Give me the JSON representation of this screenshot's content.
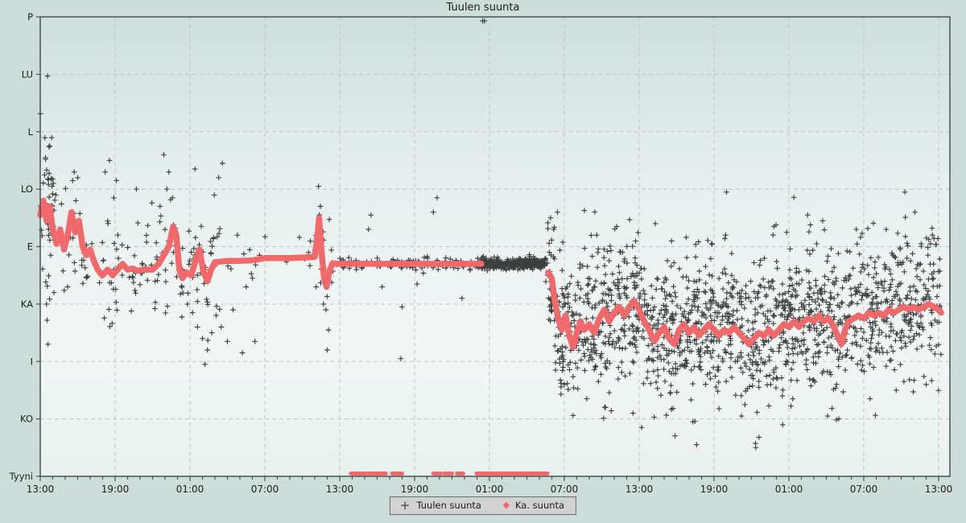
{
  "title": "Tuulen suunta",
  "legend": {
    "position": "bottom-center",
    "series1_label": "Tuulen suunta",
    "series2_label": "Ka. suunta"
  },
  "colors": {
    "avg_series": "#f2696b",
    "instant_series": "#3d4040",
    "grid": "#bfc4c4",
    "axis": "#4c5050",
    "page_bg": "#cdddd9",
    "legend_bg": "#d2d2d2",
    "text": "#1c1c1c"
  },
  "chart_data": {
    "type": "scatter",
    "title": "Tuulen suunta",
    "grid": true,
    "x_axis": {
      "unit": "time",
      "hours_span": 72.2,
      "major_tick_hours": 6,
      "minor_tick_hours": 1,
      "tick_labels": [
        "13:00",
        "19:00",
        "01:00",
        "07:00",
        "13:00",
        "19:00",
        "01:00",
        "07:00",
        "13:00",
        "19:00",
        "01:00",
        "07:00",
        "13:00"
      ]
    },
    "y_axis": {
      "categories_top_to_bottom": [
        "P",
        "LU",
        "L",
        "LO",
        "E",
        "KA",
        "I",
        "KO",
        "Tyyni"
      ],
      "value_map": {
        "Tyyni": 0,
        "KO": 1,
        "I": 2,
        "KA": 3,
        "E": 4,
        "LO": 5,
        "L": 6,
        "LU": 7,
        "P": 8
      },
      "range": [
        0,
        8
      ]
    },
    "series": [
      {
        "name": "Tuulen suunta",
        "marker": "plus",
        "color": "#3d4040",
        "scatter_segments": [
          {
            "t0": 0,
            "t1": 1.2,
            "n": 40,
            "sigma": 0.75
          },
          {
            "t0": 1.2,
            "t1": 10,
            "n": 85,
            "sigma": 0.45
          },
          {
            "t0": 10,
            "t1": 14.5,
            "n": 70,
            "sigma": 0.5
          },
          {
            "t0": 14.5,
            "t1": 22,
            "n": 14,
            "sigma": 0.3
          },
          {
            "t0": 22,
            "t1": 23.4,
            "n": 22,
            "sigma": 0.45
          },
          {
            "t0": 23.4,
            "t1": 35.3,
            "n": 135,
            "sigma": 0.05
          },
          {
            "t0": 35.3,
            "t1": 40.5,
            "n": 380,
            "sigma": 0.045
          },
          {
            "t0": 40.5,
            "t1": 41.6,
            "n": 45,
            "sigma": 0.4
          },
          {
            "t0": 41.6,
            "t1": 72.2,
            "n": 1500,
            "sigma": 0.6,
            "offset": 0.05
          }
        ],
        "outliers": [
          [
            0.58,
            6.97
          ],
          [
            0.7,
            5.74
          ],
          [
            0.35,
            5.25
          ],
          [
            0.62,
            5.18
          ],
          [
            0.95,
            5.05
          ],
          [
            1.25,
            4.9
          ],
          [
            0.45,
            4.75
          ],
          [
            2.6,
            5.15
          ],
          [
            3.0,
            5.2
          ],
          [
            2.85,
            4.8
          ],
          [
            5.2,
            5.3
          ],
          [
            5.55,
            5.5
          ],
          [
            6.1,
            5.15
          ],
          [
            5.9,
            4.85
          ],
          [
            7.7,
            5.0
          ],
          [
            0.5,
            3.0
          ],
          [
            0.55,
            2.72
          ],
          [
            0.62,
            2.3
          ],
          [
            1.1,
            3.2
          ],
          [
            2.2,
            3.3
          ],
          [
            9.9,
            5.6
          ],
          [
            10.3,
            5.3
          ],
          [
            10.15,
            5.0
          ],
          [
            10.6,
            4.85
          ],
          [
            12.4,
            5.35
          ],
          [
            9.6,
            4.7
          ],
          [
            11.8,
            3.0
          ],
          [
            12.2,
            2.85
          ],
          [
            12.6,
            2.6
          ],
          [
            13.0,
            2.4
          ],
          [
            13.4,
            2.2
          ],
          [
            13.75,
            2.5
          ],
          [
            14.1,
            2.8
          ],
          [
            14.5,
            2.6
          ],
          [
            15.0,
            2.35
          ],
          [
            15.45,
            2.9
          ],
          [
            16.2,
            2.15
          ],
          [
            17.2,
            2.35
          ],
          [
            13.2,
            1.95
          ],
          [
            14.3,
            5.2
          ],
          [
            14.6,
            5.45
          ],
          [
            13.95,
            4.9
          ],
          [
            15.8,
            4.2
          ],
          [
            16.5,
            3.3
          ],
          [
            17.0,
            3.45
          ],
          [
            22.3,
            5.05
          ],
          [
            22.45,
            4.7
          ],
          [
            22.9,
            2.9
          ],
          [
            23.1,
            2.55
          ],
          [
            23.0,
            2.2
          ],
          [
            22.7,
            3.0
          ],
          [
            26.3,
            4.3
          ],
          [
            26.5,
            4.55
          ],
          [
            29.0,
            2.95
          ],
          [
            28.9,
            2.05
          ],
          [
            31.5,
            4.6
          ],
          [
            31.8,
            4.85
          ],
          [
            33.8,
            3.1
          ],
          [
            30.2,
            3.35
          ],
          [
            27.4,
            3.3
          ],
          [
            35.45,
            7.93
          ],
          [
            35.6,
            7.97
          ],
          [
            40.9,
            4.5
          ],
          [
            41.15,
            4.3
          ],
          [
            41.45,
            4.6
          ],
          [
            40.8,
            3.9
          ],
          [
            41.3,
            1.85
          ],
          [
            42.0,
            1.6
          ],
          [
            55.0,
            4.95
          ],
          [
            52.3,
            0.95
          ],
          [
            52.6,
            0.55
          ],
          [
            57.35,
            0.5
          ],
          [
            57.6,
            0.68
          ],
          [
            64.0,
            1.0
          ],
          [
            66.5,
            1.35
          ],
          [
            47.5,
            1.1
          ],
          [
            45.3,
            1.2
          ],
          [
            49.3,
            4.4
          ],
          [
            58.8,
            4.35
          ],
          [
            61.5,
            4.55
          ],
          [
            69.3,
            4.95
          ],
          [
            70.1,
            4.6
          ],
          [
            67.8,
            4.3
          ],
          [
            44.6,
            4.2
          ],
          [
            46.2,
            4.35
          ],
          [
            50.6,
            4.1
          ],
          [
            62.7,
            4.45
          ],
          [
            65.4,
            4.3
          ],
          [
            71.5,
            4.2
          ],
          [
            53.8,
            4.05
          ],
          [
            48.2,
            0.85
          ],
          [
            59.5,
            0.9
          ],
          [
            63.1,
            1.05
          ],
          [
            68.6,
            1.5
          ],
          [
            71.0,
            1.6
          ],
          [
            43.8,
            1.35
          ],
          [
            56.2,
            1.05
          ]
        ]
      },
      {
        "name": "Ka. suunta",
        "marker": "dot",
        "color": "#f2696b",
        "line_segments": [
          [
            [
              0,
              4.55
            ],
            [
              0.25,
              4.8
            ],
            [
              0.5,
              4.45
            ],
            [
              0.75,
              4.7
            ],
            [
              1,
              4.3
            ],
            [
              1.3,
              4.05
            ],
            [
              1.6,
              4.3
            ],
            [
              1.9,
              3.95
            ],
            [
              2.2,
              4.2
            ],
            [
              2.5,
              4.6
            ],
            [
              2.8,
              4.25
            ],
            [
              3.1,
              4.45
            ],
            [
              3.4,
              4
            ],
            [
              3.7,
              3.85
            ],
            [
              4,
              3.95
            ],
            [
              4.3,
              3.75
            ],
            [
              4.6,
              3.6
            ],
            [
              5,
              3.5
            ],
            [
              5.4,
              3.6
            ],
            [
              5.8,
              3.5
            ],
            [
              6.2,
              3.6
            ],
            [
              6.6,
              3.7
            ],
            [
              7,
              3.6
            ],
            [
              7.4,
              3.62
            ],
            [
              7.8,
              3.58
            ],
            [
              8.4,
              3.6
            ],
            [
              9,
              3.6
            ],
            [
              9.5,
              3.7
            ],
            [
              9.9,
              3.85
            ],
            [
              10.3,
              4
            ],
            [
              10.65,
              4.35
            ],
            [
              10.9,
              4.2
            ],
            [
              11.15,
              3.6
            ],
            [
              11.4,
              3.45
            ],
            [
              11.7,
              3.55
            ],
            [
              12.1,
              3.5
            ],
            [
              12.5,
              3.8
            ],
            [
              12.75,
              3.95
            ],
            [
              13.1,
              3.55
            ],
            [
              13.4,
              3.4
            ],
            [
              13.7,
              3.6
            ],
            [
              14,
              3.73
            ],
            [
              15,
              3.75
            ],
            [
              16,
              3.75
            ],
            [
              17,
              3.76
            ],
            [
              18,
              3.8
            ],
            [
              19,
              3.8
            ],
            [
              20,
              3.8
            ],
            [
              21,
              3.81
            ],
            [
              22,
              3.82
            ],
            [
              22.2,
              4.15
            ],
            [
              22.35,
              4.5
            ],
            [
              22.55,
              3.9
            ],
            [
              22.75,
              3.45
            ],
            [
              22.95,
              3.3
            ],
            [
              23.15,
              3.55
            ],
            [
              23.4,
              3.7
            ],
            [
              25,
              3.7
            ],
            [
              27,
              3.7
            ],
            [
              29,
              3.7
            ],
            [
              31,
              3.7
            ],
            [
              33,
              3.7
            ],
            [
              35.35,
              3.7
            ]
          ],
          [
            [
              40.7,
              3.55
            ],
            [
              41,
              3.45
            ],
            [
              41.2,
              3.1
            ],
            [
              41.5,
              2.75
            ],
            [
              41.8,
              2.55
            ],
            [
              42.1,
              2.8
            ],
            [
              42.4,
              2.45
            ],
            [
              42.7,
              2.25
            ],
            [
              43,
              2.5
            ],
            [
              43.3,
              2.7
            ],
            [
              43.6,
              2.55
            ],
            [
              44,
              2.65
            ],
            [
              44.4,
              2.5
            ],
            [
              44.8,
              2.75
            ],
            [
              45.2,
              2.9
            ],
            [
              45.6,
              2.7
            ],
            [
              46,
              2.85
            ],
            [
              46.4,
              2.95
            ],
            [
              46.8,
              2.8
            ],
            [
              47.2,
              2.95
            ],
            [
              47.6,
              3.05
            ],
            [
              48,
              2.9
            ],
            [
              48.4,
              2.7
            ],
            [
              48.8,
              2.55
            ],
            [
              49.2,
              2.35
            ],
            [
              49.6,
              2.5
            ],
            [
              50,
              2.6
            ],
            [
              50.4,
              2.4
            ],
            [
              50.8,
              2.3
            ],
            [
              51.2,
              2.55
            ],
            [
              51.6,
              2.65
            ],
            [
              52,
              2.5
            ],
            [
              52.4,
              2.6
            ],
            [
              52.8,
              2.45
            ],
            [
              53.2,
              2.55
            ],
            [
              53.6,
              2.65
            ],
            [
              54,
              2.55
            ],
            [
              54.4,
              2.45
            ],
            [
              54.8,
              2.55
            ],
            [
              55.2,
              2.5
            ],
            [
              55.6,
              2.6
            ],
            [
              56,
              2.5
            ],
            [
              56.4,
              2.4
            ],
            [
              56.8,
              2.3
            ],
            [
              57.2,
              2.4
            ],
            [
              57.6,
              2.5
            ],
            [
              58,
              2.45
            ],
            [
              58.4,
              2.55
            ],
            [
              58.8,
              2.45
            ],
            [
              59.2,
              2.55
            ],
            [
              59.6,
              2.65
            ],
            [
              60,
              2.6
            ],
            [
              60.4,
              2.7
            ],
            [
              60.8,
              2.6
            ],
            [
              61.2,
              2.7
            ],
            [
              61.6,
              2.75
            ],
            [
              62,
              2.7
            ],
            [
              62.4,
              2.8
            ],
            [
              62.8,
              2.7
            ],
            [
              63.2,
              2.75
            ],
            [
              63.6,
              2.6
            ],
            [
              63.9,
              2.45
            ],
            [
              64.2,
              2.3
            ],
            [
              64.5,
              2.55
            ],
            [
              64.8,
              2.7
            ],
            [
              65.2,
              2.75
            ],
            [
              65.6,
              2.8
            ],
            [
              66,
              2.75
            ],
            [
              66.4,
              2.85
            ],
            [
              66.8,
              2.8
            ],
            [
              67.2,
              2.85
            ],
            [
              67.6,
              2.8
            ],
            [
              68,
              2.9
            ],
            [
              68.4,
              2.85
            ],
            [
              68.8,
              2.9
            ],
            [
              69.2,
              2.95
            ],
            [
              69.6,
              2.9
            ],
            [
              70,
              2.95
            ],
            [
              70.4,
              2.9
            ],
            [
              70.8,
              2.95
            ],
            [
              71.2,
              3
            ],
            [
              71.6,
              2.95
            ],
            [
              72,
              2.9
            ],
            [
              72.2,
              2.85
            ]
          ]
        ],
        "calm_segments_tyyni": [
          [
            24.9,
            26.1
          ],
          [
            26.3,
            27.7
          ],
          [
            28.2,
            29.0
          ],
          [
            31.5,
            32.1
          ],
          [
            32.4,
            33.0
          ],
          [
            33.4,
            33.9
          ],
          [
            34.97,
            40.65
          ]
        ]
      }
    ]
  }
}
